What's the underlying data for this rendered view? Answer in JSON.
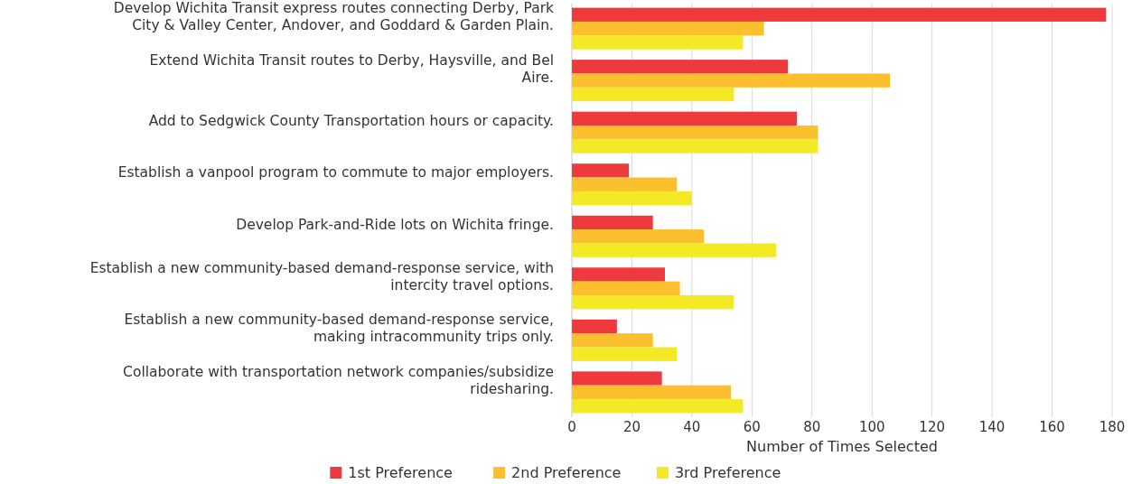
{
  "chart_data": {
    "type": "bar",
    "orientation": "horizontal",
    "xlabel": "Number of Times Selected",
    "categories": [
      "Develop Wichita Transit express routes connecting Derby, Park City & Valley Center, Andover, and Goddard & Garden Plain.",
      "Extend Wichita Transit routes to Derby, Haysville, and Bel Aire.",
      "Add to Sedgwick County Transportation hours or capacity.",
      "Establish a vanpool program to commute to major employers.",
      "Develop Park-and-Ride lots on Wichita fringe.",
      "Establish a new community-based demand-response service, with intercity travel options.",
      "Establish a new community-based demand-response service, making intracommunity trips only.",
      "Collaborate with transportation network companies/subsidize ridesharing."
    ],
    "series": [
      {
        "name": "1st Preference",
        "color": "#ee3a3d",
        "values": [
          178,
          72,
          75,
          19,
          27,
          31,
          15,
          30
        ]
      },
      {
        "name": "2nd Preference",
        "color": "#fcbf2e",
        "values": [
          64,
          106,
          82,
          35,
          44,
          36,
          27,
          53
        ]
      },
      {
        "name": "3rd Preference",
        "color": "#f3ea25",
        "values": [
          57,
          54,
          82,
          40,
          68,
          54,
          35,
          57
        ]
      }
    ],
    "xlim": [
      0,
      180
    ],
    "xticks": [
      0,
      20,
      40,
      60,
      80,
      100,
      120,
      140,
      160,
      180
    ],
    "grid": "x",
    "legend": "bottom"
  }
}
